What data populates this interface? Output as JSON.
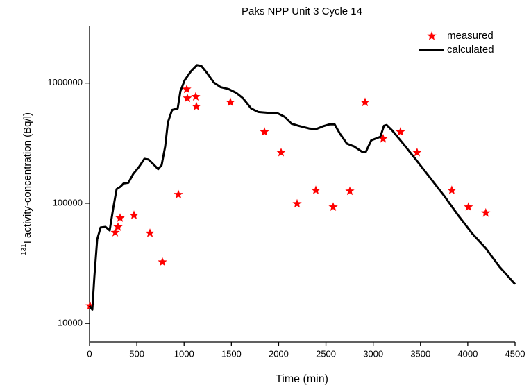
{
  "chart_data": {
    "type": "scatter_line",
    "title": "Paks NPP Unit 3 Cycle 14",
    "xlabel": "Time  (min)",
    "ylabel_sup": "131",
    "ylabel": "I activity-concentration  (Bq/l)",
    "log_y": true,
    "xlim": [
      0,
      4500
    ],
    "xticks": [
      0,
      500,
      1000,
      1500,
      2000,
      2500,
      3000,
      3500,
      4000,
      4500
    ],
    "ylim": [
      7000,
      3000000
    ],
    "yticks": [
      10000,
      100000,
      1000000
    ],
    "legend": "upper right",
    "series": [
      {
        "name": "measured",
        "kind": "star",
        "color": "#ff0000",
        "x": [
          5,
          272,
          301,
          323,
          470,
          639,
          771,
          940,
          1028,
          1035,
          1123,
          1130,
          1490,
          1850,
          2026,
          2195,
          2393,
          2577,
          2753,
          2914,
          3105,
          3288,
          3464,
          3831,
          4007,
          4190
        ],
        "values": [
          14000,
          57000,
          63400,
          75300,
          79400,
          56300,
          32400,
          118000,
          888000,
          748000,
          770000,
          638000,
          691000,
          392000,
          264000,
          99000,
          128000,
          93000,
          126000,
          691000,
          344000,
          392000,
          264000,
          128000,
          93000,
          83000
        ]
      },
      {
        "name": "calculated",
        "kind": "line",
        "color": "#000000",
        "x": [
          0,
          29,
          51,
          81,
          117,
          169,
          213,
          250,
          286,
          330,
          360,
          411,
          462,
          521,
          580,
          624,
          668,
          726,
          763,
          800,
          829,
          873,
          932,
          961,
          1005,
          1072,
          1137,
          1182,
          1240,
          1314,
          1387,
          1475,
          1549,
          1622,
          1710,
          1784,
          1879,
          1990,
          2063,
          2136,
          2210,
          2320,
          2393,
          2467,
          2540,
          2592,
          2650,
          2723,
          2797,
          2885,
          2922,
          2980,
          3039,
          3076,
          3113,
          3142,
          3201,
          3311,
          3457,
          3604,
          3751,
          3898,
          4044,
          4190,
          4337,
          4500
        ],
        "values": [
          14000,
          13000,
          24200,
          50000,
          62800,
          63600,
          59400,
          90600,
          131000,
          138000,
          146000,
          148000,
          175000,
          200000,
          234000,
          231000,
          214000,
          192000,
          208000,
          297000,
          471000,
          597000,
          614000,
          853000,
          1050000,
          1250000,
          1410000,
          1390000,
          1220000,
          1010000,
          924000,
          888000,
          831000,
          748000,
          614000,
          574000,
          566000,
          560000,
          524000,
          459000,
          441000,
          419000,
          413000,
          436000,
          453000,
          453000,
          377000,
          313000,
          297000,
          267000,
          267000,
          334000,
          348000,
          357000,
          441000,
          447000,
          403000,
          317000,
          228000,
          162000,
          115000,
          79400,
          56300,
          42200,
          29500,
          21200
        ]
      }
    ]
  }
}
